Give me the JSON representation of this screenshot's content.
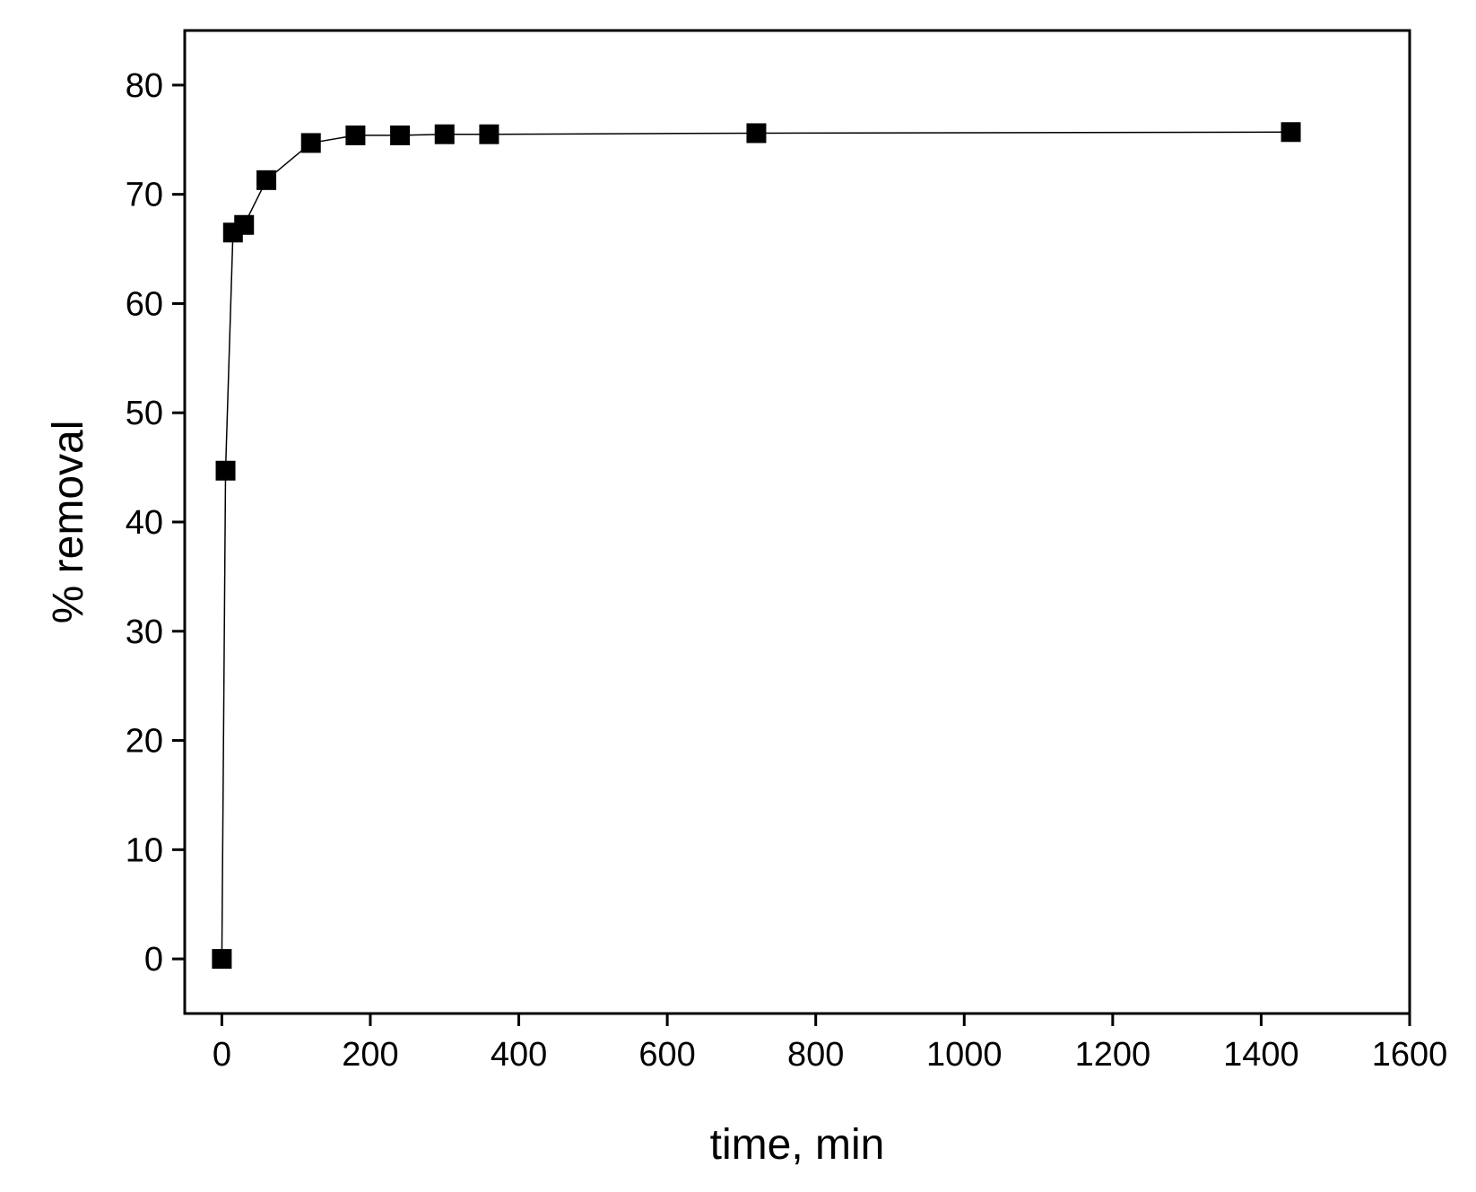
{
  "chart_data": {
    "type": "line",
    "x_label": "time, min",
    "y_label": "% removal",
    "x": [
      0,
      5,
      15,
      30,
      60,
      120,
      180,
      240,
      300,
      360,
      720,
      1440
    ],
    "series": [
      {
        "color": "#000000",
        "values": [
          0,
          44.7,
          66.5,
          67.2,
          71.3,
          74.7,
          75.4,
          75.4,
          75.5,
          75.5,
          75.6,
          75.7
        ]
      }
    ],
    "xlim": [
      -50,
      1600
    ],
    "xticks": [
      0,
      200,
      400,
      600,
      800,
      1000,
      1200,
      1400,
      1600
    ],
    "ylim": [
      -5,
      85
    ],
    "yticks": [
      0,
      10,
      20,
      30,
      40,
      50,
      60,
      70,
      80
    ],
    "grid": false
  }
}
